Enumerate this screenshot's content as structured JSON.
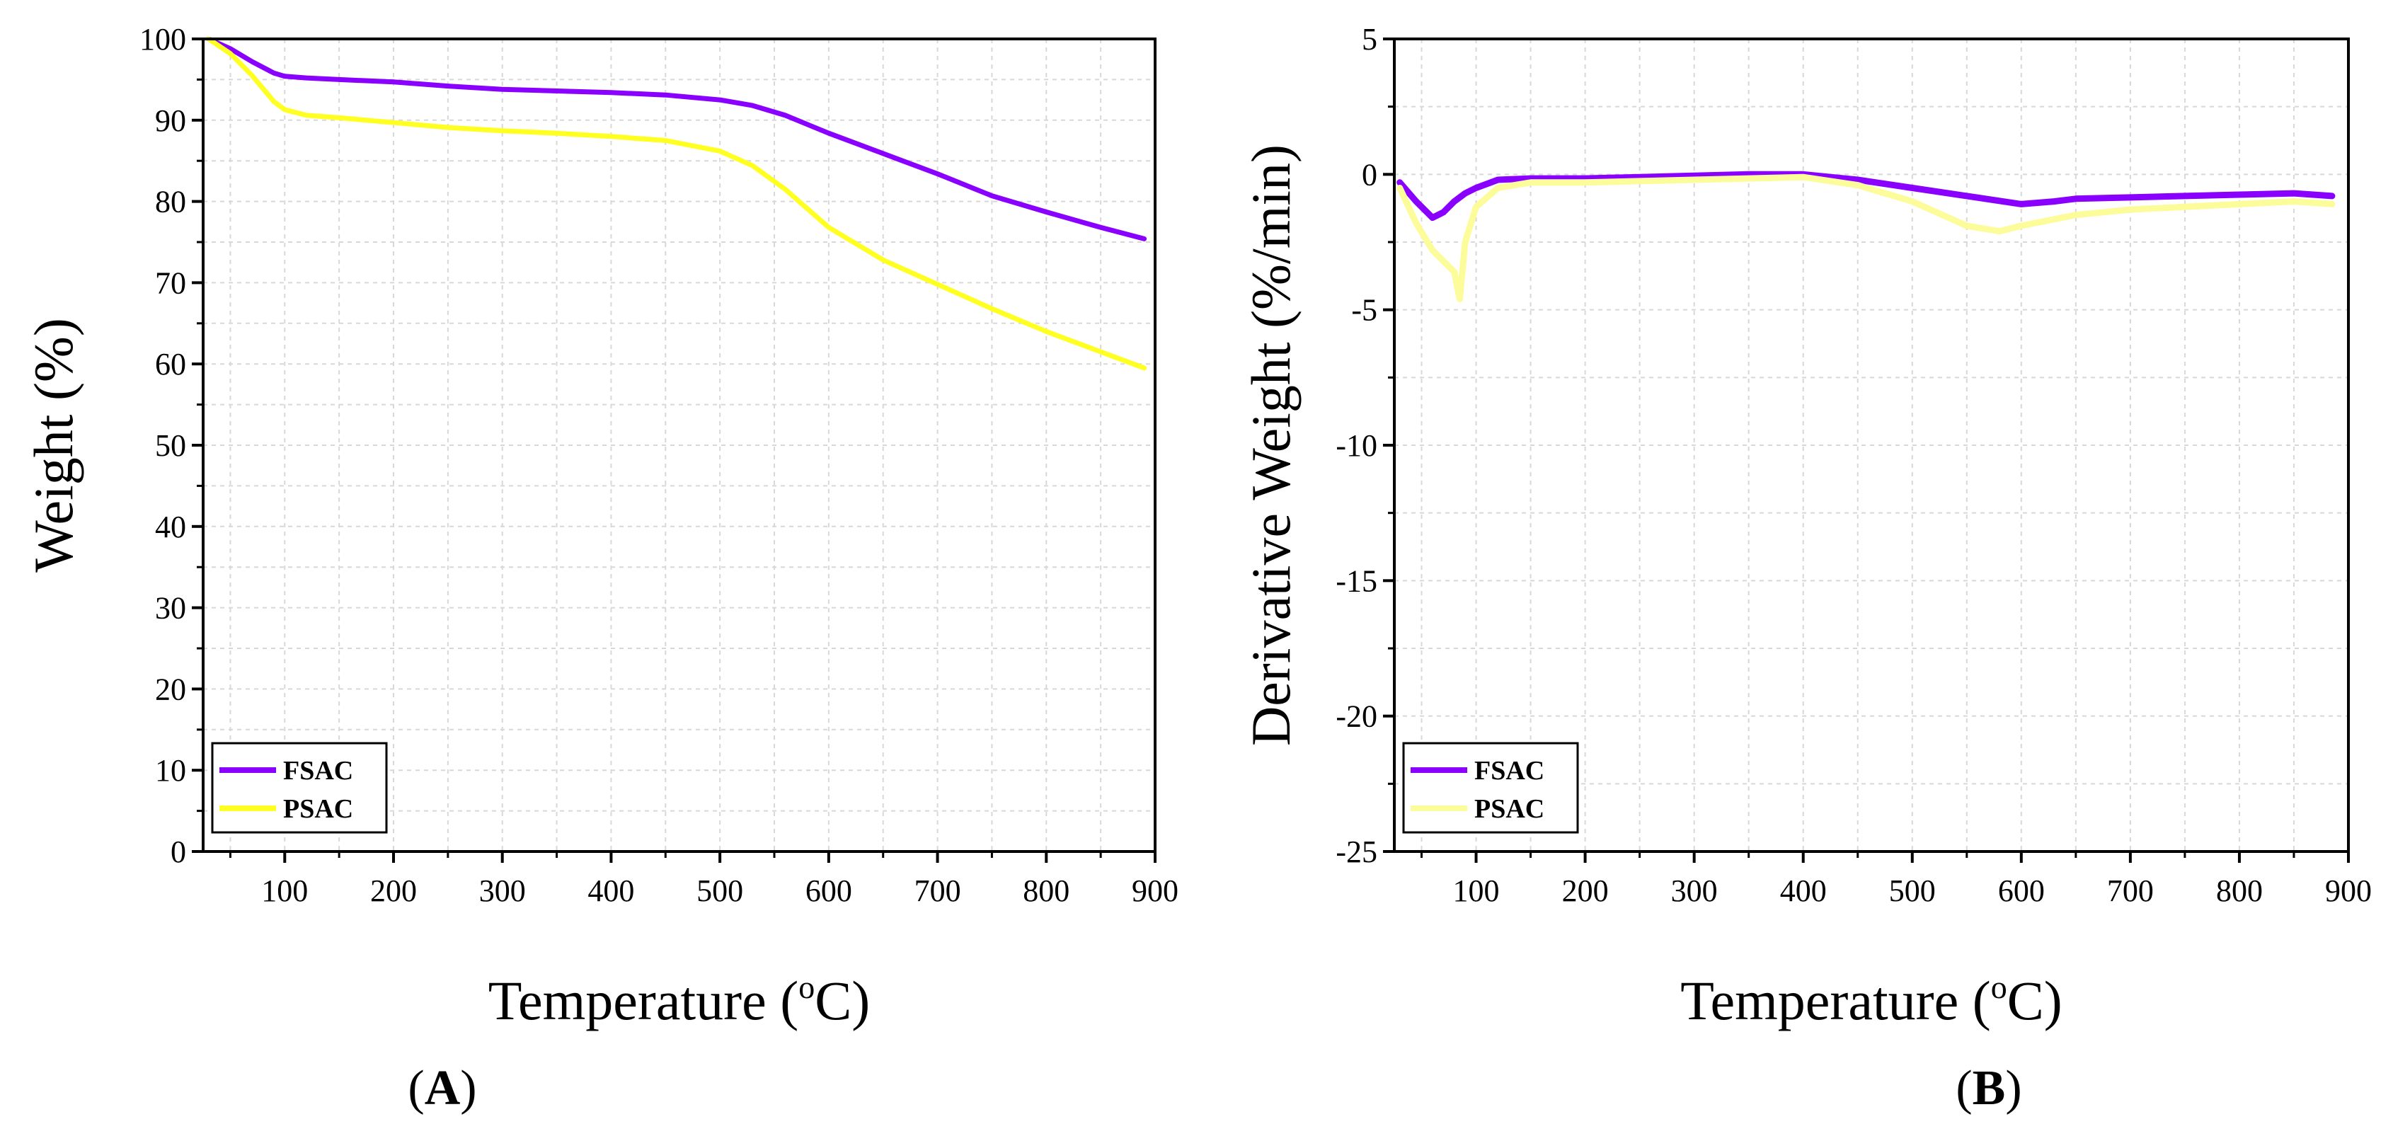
{
  "colors": {
    "fsac": "#8a00ff",
    "psac": "#ffff22",
    "psac_deriv": "#fcfc9a",
    "grid": "#d8d8d8",
    "axis": "#000000"
  },
  "chart_data": [
    {
      "panel": "A",
      "type": "line",
      "panel_label": {
        "open": "(",
        "letter": "A",
        "close": ")"
      },
      "xlabel": "Temperature (",
      "xlabel_sup": "o",
      "xlabel_end": "C)",
      "ylabel": "Weight (%)",
      "xlim": [
        25,
        900
      ],
      "ylim": [
        0,
        100
      ],
      "xticks": [
        100,
        200,
        300,
        400,
        500,
        600,
        700,
        800,
        900
      ],
      "yticks": [
        0,
        10,
        20,
        30,
        40,
        50,
        60,
        70,
        80,
        90,
        100
      ],
      "grid": true,
      "legend_position": "bottom-left",
      "series": [
        {
          "name": "FSAC",
          "x": [
            30,
            50,
            70,
            90,
            100,
            120,
            150,
            200,
            250,
            300,
            350,
            400,
            450,
            500,
            530,
            560,
            600,
            650,
            700,
            750,
            800,
            850,
            890
          ],
          "y": [
            100,
            98.8,
            97.2,
            95.8,
            95.4,
            95.2,
            95.0,
            94.7,
            94.2,
            93.8,
            93.6,
            93.4,
            93.1,
            92.5,
            91.8,
            90.6,
            88.4,
            85.9,
            83.4,
            80.7,
            78.7,
            76.8,
            75.4
          ]
        },
        {
          "name": "PSAC",
          "x": [
            30,
            50,
            70,
            90,
            100,
            120,
            150,
            200,
            250,
            300,
            350,
            400,
            450,
            500,
            530,
            560,
            600,
            650,
            700,
            750,
            800,
            850,
            890
          ],
          "y": [
            100,
            98.2,
            95.5,
            92.3,
            91.3,
            90.6,
            90.3,
            89.7,
            89.1,
            88.7,
            88.4,
            88.0,
            87.5,
            86.2,
            84.4,
            81.5,
            76.8,
            72.8,
            69.8,
            66.8,
            64.0,
            61.5,
            59.5
          ]
        }
      ]
    },
    {
      "panel": "B",
      "type": "line",
      "panel_label": {
        "open": "(",
        "letter": "B",
        "close": ")"
      },
      "xlabel": "Temperature (",
      "xlabel_sup": "o",
      "xlabel_end": "C)",
      "ylabel": "Derivative Weight (%/min)",
      "xlim": [
        25,
        900
      ],
      "ylim": [
        -25,
        5
      ],
      "xticks": [
        100,
        200,
        300,
        400,
        500,
        600,
        700,
        800,
        900
      ],
      "yticks": [
        -25,
        -20,
        -15,
        -10,
        -5,
        0,
        5
      ],
      "grid": true,
      "legend_position": "bottom-left",
      "series": [
        {
          "name": "FSAC",
          "x": [
            30,
            45,
            60,
            70,
            80,
            90,
            100,
            120,
            150,
            200,
            250,
            300,
            350,
            400,
            450,
            500,
            550,
            600,
            630,
            650,
            700,
            750,
            800,
            850,
            885
          ],
          "y": [
            -0.3,
            -1.0,
            -1.6,
            -1.4,
            -1.0,
            -0.7,
            -0.5,
            -0.2,
            -0.15,
            -0.15,
            -0.1,
            -0.05,
            0.0,
            0.0,
            -0.2,
            -0.5,
            -0.8,
            -1.1,
            -1.0,
            -0.9,
            -0.85,
            -0.8,
            -0.75,
            -0.7,
            -0.8
          ]
        },
        {
          "name": "PSAC",
          "x": [
            30,
            45,
            60,
            70,
            80,
            85,
            90,
            100,
            120,
            150,
            200,
            250,
            300,
            350,
            400,
            450,
            500,
            550,
            580,
            600,
            650,
            700,
            750,
            800,
            850,
            885
          ],
          "y": [
            -0.5,
            -1.8,
            -2.8,
            -3.2,
            -3.6,
            -4.6,
            -2.5,
            -1.2,
            -0.5,
            -0.3,
            -0.3,
            -0.25,
            -0.2,
            -0.15,
            -0.1,
            -0.4,
            -1.0,
            -1.9,
            -2.1,
            -1.9,
            -1.5,
            -1.3,
            -1.2,
            -1.1,
            -1.0,
            -1.1
          ]
        }
      ]
    }
  ]
}
